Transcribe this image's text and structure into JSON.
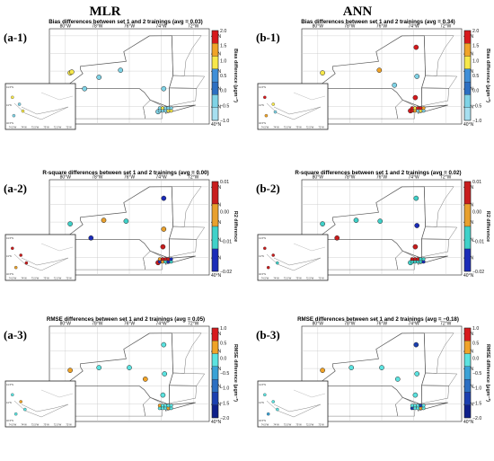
{
  "columns": [
    {
      "title": "MLR"
    },
    {
      "title": "ANN"
    }
  ],
  "lon_labels": [
    "80°W",
    "78°W",
    "76°W",
    "74°W",
    "72°W"
  ],
  "lat_labels": [
    "45°N",
    "44°N",
    "43°N",
    "42°N",
    "41°N",
    "40°N"
  ],
  "inset_lat_labels": [
    "41.5°N",
    "41°N",
    "40.5°N"
  ],
  "inset_lon_labels": [
    "74.5°W",
    "74°W",
    "73.5°W",
    "73°W",
    "72.5°W",
    "72°W"
  ],
  "colorbars": [
    {
      "label": "Bias difference (μgm⁻³)",
      "ticks": [
        "2.0",
        "1.5",
        "1.0",
        "0.5",
        "0.0",
        "−0.5",
        "−1.0"
      ],
      "colors": [
        "#d7191c",
        "#f0a328",
        "#f7e84a",
        "#3f8fd8",
        "#2c6fc2",
        "#7fd3e6",
        "#a6dff0"
      ]
    },
    {
      "label": "R2 difference",
      "ticks": [
        "0.01",
        "0.00",
        "−0.01",
        "−0.02"
      ],
      "colors": [
        "#c81c1c",
        "#e8a02d",
        "#3fd1c9",
        "#1a2bb8"
      ]
    },
    {
      "label": "RMSE difference (μgm⁻³)",
      "ticks": [
        "1.0",
        "0.5",
        "0.0",
        "−0.5",
        "−1.0",
        "−1.5",
        "−2.0"
      ],
      "colors": [
        "#d7191c",
        "#f0a328",
        "#5be3e0",
        "#3aa2d6",
        "#2c6fc2",
        "#1b3fb0",
        "#0e1f8a"
      ]
    }
  ],
  "panels": [
    {
      "label": "(a-1)",
      "title": "Bias differences between set 1 and 2 trainings (avg = 0.03)",
      "colorbar": 0,
      "stations": [
        {
          "lon": 77.9,
          "lat": 42.65,
          "color": "#7fd3e6"
        },
        {
          "lon": 76.55,
          "lat": 43.05,
          "color": "#7fd3e6"
        },
        {
          "lon": 78.8,
          "lat": 42.0,
          "color": "#7fd3e6"
        },
        {
          "lon": 79.7,
          "lat": 42.9,
          "color": "#f7e84a"
        },
        {
          "lon": 79.6,
          "lat": 42.95,
          "color": "#f7e84a"
        },
        {
          "lon": 73.85,
          "lat": 42.0,
          "color": "#7fd3e6"
        },
        {
          "lon": 74.0,
          "lat": 40.8,
          "color": "#f7e84a"
        },
        {
          "lon": 74.2,
          "lat": 40.7,
          "color": "#7fd3e6"
        }
      ],
      "inset_stations": [
        {
          "u": 0.1,
          "v": 0.3,
          "color": "#f7e84a"
        },
        {
          "u": 0.2,
          "v": 0.45,
          "color": "#7fd3e6"
        },
        {
          "u": 0.25,
          "v": 0.6,
          "color": "#f7e84a"
        },
        {
          "u": 0.12,
          "v": 0.7,
          "color": "#7fd3e6"
        }
      ]
    },
    {
      "label": "(b-1)",
      "title": "Bias differences between set 1 and 2 trainings (avg = 0.34)",
      "colorbar": 0,
      "stations": [
        {
          "lon": 73.85,
          "lat": 44.35,
          "color": "#d7191c"
        },
        {
          "lon": 76.15,
          "lat": 43.05,
          "color": "#f0a328"
        },
        {
          "lon": 75.2,
          "lat": 42.2,
          "color": "#7fd3e6"
        },
        {
          "lon": 79.7,
          "lat": 42.9,
          "color": "#f7e84a"
        },
        {
          "lon": 73.8,
          "lat": 42.7,
          "color": "#7fd3e6"
        },
        {
          "lon": 73.9,
          "lat": 41.5,
          "color": "#d7191c"
        },
        {
          "lon": 74.0,
          "lat": 40.8,
          "color": "#f7e84a"
        },
        {
          "lon": 74.2,
          "lat": 40.75,
          "color": "#d7191c"
        }
      ],
      "inset_stations": [
        {
          "u": 0.1,
          "v": 0.3,
          "color": "#d7191c"
        },
        {
          "u": 0.22,
          "v": 0.45,
          "color": "#f7e84a"
        },
        {
          "u": 0.25,
          "v": 0.62,
          "color": "#7fd3e6"
        },
        {
          "u": 0.12,
          "v": 0.7,
          "color": "#f0a328"
        }
      ]
    },
    {
      "label": "(a-2)",
      "title": "R-square differences between set 1 and 2 trainings (avg = 0.00)",
      "colorbar": 1,
      "stations": [
        {
          "lon": 73.85,
          "lat": 44.35,
          "color": "#1a2bb8"
        },
        {
          "lon": 77.6,
          "lat": 43.1,
          "color": "#e8a02d"
        },
        {
          "lon": 76.2,
          "lat": 43.05,
          "color": "#3fd1c9"
        },
        {
          "lon": 78.4,
          "lat": 42.1,
          "color": "#1a2bb8"
        },
        {
          "lon": 79.7,
          "lat": 42.9,
          "color": "#3fd1c9"
        },
        {
          "lon": 73.85,
          "lat": 42.6,
          "color": "#e8a02d"
        },
        {
          "lon": 73.9,
          "lat": 41.6,
          "color": "#c81c1c"
        },
        {
          "lon": 74.0,
          "lat": 40.8,
          "color": "#c81c1c"
        },
        {
          "lon": 74.2,
          "lat": 40.7,
          "color": "#c81c1c"
        }
      ],
      "inset_stations": [
        {
          "u": 0.1,
          "v": 0.3,
          "color": "#c81c1c"
        },
        {
          "u": 0.22,
          "v": 0.45,
          "color": "#c81c1c"
        },
        {
          "u": 0.3,
          "v": 0.62,
          "color": "#c81c1c"
        },
        {
          "u": 0.15,
          "v": 0.72,
          "color": "#e8a02d"
        }
      ]
    },
    {
      "label": "(b-2)",
      "title": "R-square differences between set 1 and 2 trainings (avg = 0.02)",
      "colorbar": 1,
      "stations": [
        {
          "lon": 73.85,
          "lat": 44.35,
          "color": "#3fd1c9"
        },
        {
          "lon": 77.6,
          "lat": 43.1,
          "color": "#3fd1c9"
        },
        {
          "lon": 76.1,
          "lat": 43.05,
          "color": "#3fd1c9"
        },
        {
          "lon": 79.7,
          "lat": 42.9,
          "color": "#3fd1c9"
        },
        {
          "lon": 73.8,
          "lat": 42.8,
          "color": "#1a2bb8"
        },
        {
          "lon": 78.8,
          "lat": 42.1,
          "color": "#c81c1c"
        },
        {
          "lon": 73.9,
          "lat": 41.6,
          "color": "#c81c1c"
        },
        {
          "lon": 74.0,
          "lat": 40.8,
          "color": "#c81c1c"
        },
        {
          "lon": 74.2,
          "lat": 40.7,
          "color": "#3fd1c9"
        }
      ],
      "inset_stations": [
        {
          "u": 0.1,
          "v": 0.3,
          "color": "#c81c1c"
        },
        {
          "u": 0.22,
          "v": 0.45,
          "color": "#c81c1c"
        },
        {
          "u": 0.28,
          "v": 0.62,
          "color": "#3fd1c9"
        },
        {
          "u": 0.15,
          "v": 0.72,
          "color": "#c81c1c"
        }
      ]
    },
    {
      "label": "(a-3)",
      "title": "RMSE differences between set 1 and 2 trainings (avg = 0.05)",
      "colorbar": 2,
      "stations": [
        {
          "lon": 73.85,
          "lat": 44.35,
          "color": "#5be3e0"
        },
        {
          "lon": 77.9,
          "lat": 43.05,
          "color": "#5be3e0"
        },
        {
          "lon": 76.0,
          "lat": 43.05,
          "color": "#5be3e0"
        },
        {
          "lon": 79.7,
          "lat": 42.9,
          "color": "#f0a328"
        },
        {
          "lon": 73.8,
          "lat": 42.7,
          "color": "#5be3e0"
        },
        {
          "lon": 75.0,
          "lat": 42.4,
          "color": "#f0a328"
        },
        {
          "lon": 73.9,
          "lat": 41.5,
          "color": "#5be3e0"
        },
        {
          "lon": 74.0,
          "lat": 40.8,
          "color": "#5be3e0"
        }
      ],
      "inset_stations": [
        {
          "u": 0.1,
          "v": 0.3,
          "color": "#5be3e0"
        },
        {
          "u": 0.22,
          "v": 0.45,
          "color": "#f0a328"
        },
        {
          "u": 0.28,
          "v": 0.62,
          "color": "#5be3e0"
        },
        {
          "u": 0.15,
          "v": 0.72,
          "color": "#5be3e0"
        }
      ]
    },
    {
      "label": "(b-3)",
      "title": "RMSE differences between set 1 and 2 trainings (avg = −0.18)",
      "colorbar": 2,
      "stations": [
        {
          "lon": 73.85,
          "lat": 44.35,
          "color": "#1b3fb0"
        },
        {
          "lon": 77.9,
          "lat": 43.05,
          "color": "#5be3e0"
        },
        {
          "lon": 76.0,
          "lat": 43.05,
          "color": "#5be3e0"
        },
        {
          "lon": 79.7,
          "lat": 42.9,
          "color": "#f0a328"
        },
        {
          "lon": 73.8,
          "lat": 42.7,
          "color": "#5be3e0"
        },
        {
          "lon": 75.0,
          "lat": 42.4,
          "color": "#5be3e0"
        },
        {
          "lon": 73.9,
          "lat": 41.5,
          "color": "#5be3e0"
        },
        {
          "lon": 74.0,
          "lat": 40.8,
          "color": "#5be3e0"
        }
      ],
      "inset_stations": [
        {
          "u": 0.1,
          "v": 0.3,
          "color": "#5be3e0"
        },
        {
          "u": 0.22,
          "v": 0.45,
          "color": "#5be3e0"
        },
        {
          "u": 0.28,
          "v": 0.62,
          "color": "#5be3e0"
        },
        {
          "u": 0.15,
          "v": 0.72,
          "color": "#3aa2d6"
        }
      ]
    }
  ]
}
